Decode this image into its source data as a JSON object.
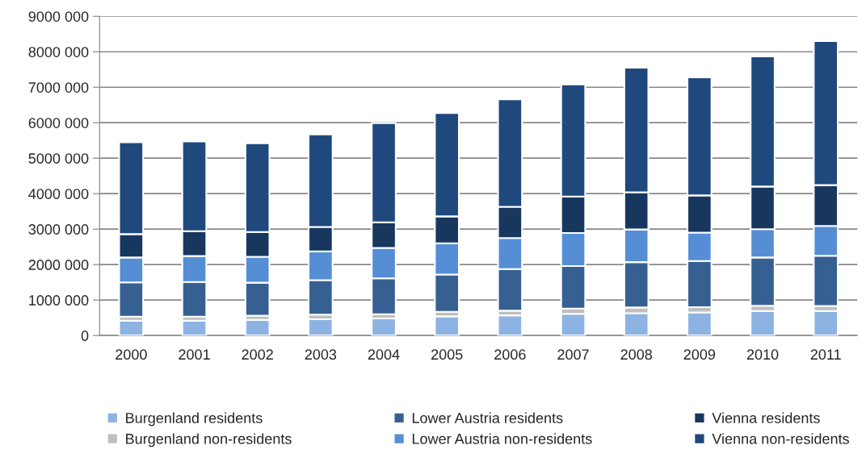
{
  "chart_data": {
    "type": "bar",
    "stacked": true,
    "categories": [
      "2000",
      "2001",
      "2002",
      "2003",
      "2004",
      "2005",
      "2006",
      "2007",
      "2008",
      "2009",
      "2010",
      "2011"
    ],
    "series": [
      {
        "name": "Burgenland residents",
        "color": "#8db3e2",
        "values": [
          420000,
          420000,
          440000,
          460000,
          480000,
          540000,
          570000,
          610000,
          630000,
          650000,
          690000,
          690000
        ]
      },
      {
        "name": "Burgenland non-residents",
        "color": "#bfbfbf",
        "values": [
          110000,
          110000,
          120000,
          130000,
          120000,
          130000,
          130000,
          150000,
          160000,
          150000,
          150000,
          140000
        ]
      },
      {
        "name": "Lower Austria residents",
        "color": "#366092",
        "values": [
          970000,
          980000,
          930000,
          970000,
          1010000,
          1050000,
          1170000,
          1200000,
          1280000,
          1300000,
          1360000,
          1420000
        ]
      },
      {
        "name": "Lower Austria non-residents",
        "color": "#558ed5",
        "values": [
          700000,
          730000,
          730000,
          810000,
          860000,
          880000,
          880000,
          930000,
          920000,
          800000,
          800000,
          840000
        ]
      },
      {
        "name": "Vienna residents",
        "color": "#17375e",
        "values": [
          660000,
          700000,
          700000,
          690000,
          720000,
          760000,
          880000,
          1030000,
          1050000,
          1050000,
          1200000,
          1150000
        ]
      },
      {
        "name": "Vienna non-residents",
        "color": "#1f497d",
        "values": [
          2590000,
          2530000,
          2500000,
          2610000,
          2800000,
          2910000,
          3030000,
          3160000,
          3510000,
          3330000,
          3670000,
          4060000
        ]
      }
    ],
    "ylim": [
      0,
      9000000
    ],
    "yticks": [
      0,
      {
        "value": 1000000,
        "label": "1000 000"
      },
      {
        "value": 2000000,
        "label": "2000 000"
      },
      {
        "value": 3000000,
        "label": "3000 000"
      },
      {
        "value": 4000000,
        "label": "4000 000"
      },
      {
        "value": 5000000,
        "label": "5000 000"
      },
      {
        "value": 6000000,
        "label": "6000 000"
      },
      {
        "value": 7000000,
        "label": "7000 000"
      },
      {
        "value": 8000000,
        "label": "8000 000"
      },
      {
        "value": 9000000,
        "label": "9000 000"
      }
    ],
    "grid": "y",
    "legend": "bottom"
  }
}
